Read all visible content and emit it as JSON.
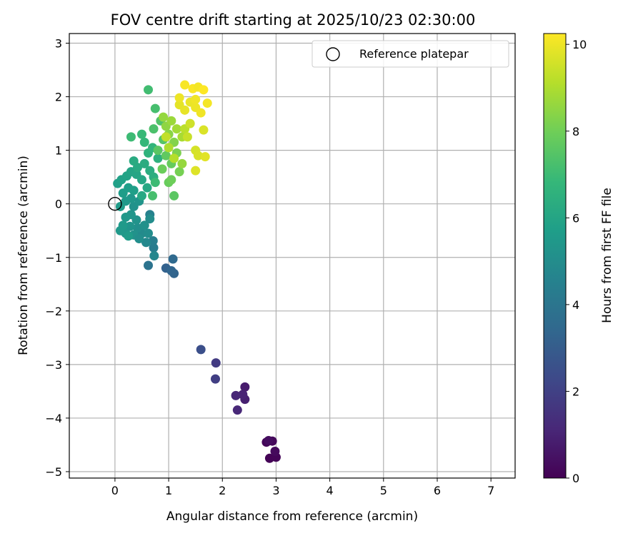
{
  "chart_data": {
    "type": "scatter",
    "title": "FOV centre drift starting at 2025/10/23 02:30:00",
    "xlabel": "Angular distance from reference (arcmin)",
    "ylabel": "Rotation from reference (arcmin)",
    "xlim": [
      -0.85,
      7.45
    ],
    "ylim": [
      -5.12,
      3.18
    ],
    "x_ticks": [
      0,
      1,
      2,
      3,
      4,
      5,
      6,
      7
    ],
    "y_ticks": [
      -5,
      -4,
      -3,
      -2,
      -1,
      0,
      1,
      2,
      3
    ],
    "x_tick_labels": [
      "0",
      "1",
      "2",
      "3",
      "4",
      "5",
      "6",
      "7"
    ],
    "y_tick_labels": [
      "−5",
      "−4",
      "−3",
      "−2",
      "−1",
      "0",
      "1",
      "2",
      "3"
    ],
    "grid": true,
    "legend": {
      "placement": "top-right",
      "entries": [
        "Reference platepar"
      ]
    },
    "reference_point": {
      "x": 0.0,
      "y": 0.0
    },
    "colorbar": {
      "label": "Hours from first FF file",
      "range": [
        0,
        10.25
      ],
      "ticks": [
        0,
        2,
        4,
        6,
        8,
        10
      ],
      "tick_labels": [
        "0",
        "2",
        "4",
        "6",
        "8",
        "10"
      ],
      "colormap": "viridis",
      "color_stops": [
        "#440154",
        "#482878",
        "#3e4989",
        "#31688e",
        "#26828e",
        "#1f9e89",
        "#35b779",
        "#6ece58",
        "#b5de2b",
        "#fde725"
      ]
    },
    "points": [
      {
        "x": 2.88,
        "y": -4.75,
        "t": 0.05
      },
      {
        "x": 3.0,
        "y": -4.73,
        "t": 0.1
      },
      {
        "x": 2.82,
        "y": -4.45,
        "t": 0.15
      },
      {
        "x": 2.93,
        "y": -4.43,
        "t": 0.2
      },
      {
        "x": 2.98,
        "y": -4.62,
        "t": 0.25
      },
      {
        "x": 2.86,
        "y": -4.42,
        "t": 0.35
      },
      {
        "x": 2.42,
        "y": -3.42,
        "t": 0.8
      },
      {
        "x": 2.42,
        "y": -3.65,
        "t": 0.9
      },
      {
        "x": 2.38,
        "y": -3.56,
        "t": 1.0
      },
      {
        "x": 2.25,
        "y": -3.58,
        "t": 1.1
      },
      {
        "x": 2.28,
        "y": -3.85,
        "t": 1.15
      },
      {
        "x": 1.88,
        "y": -2.97,
        "t": 1.8
      },
      {
        "x": 1.87,
        "y": -3.27,
        "t": 1.9
      },
      {
        "x": 1.6,
        "y": -2.72,
        "t": 2.5
      },
      {
        "x": 0.95,
        "y": -1.2,
        "t": 3.2
      },
      {
        "x": 1.1,
        "y": -1.3,
        "t": 3.3
      },
      {
        "x": 1.05,
        "y": -1.25,
        "t": 3.35
      },
      {
        "x": 1.08,
        "y": -1.03,
        "t": 3.5
      },
      {
        "x": 0.62,
        "y": -1.15,
        "t": 3.9
      },
      {
        "x": 0.72,
        "y": -0.82,
        "t": 4.3
      },
      {
        "x": 0.71,
        "y": -0.69,
        "t": 4.4
      },
      {
        "x": 0.73,
        "y": -0.97,
        "t": 4.7
      },
      {
        "x": 0.65,
        "y": -0.2,
        "t": 4.5
      },
      {
        "x": 0.58,
        "y": -0.72,
        "t": 4.8
      },
      {
        "x": 0.5,
        "y": -0.55,
        "t": 4.9
      },
      {
        "x": 0.62,
        "y": -0.55,
        "t": 5.0
      },
      {
        "x": 0.42,
        "y": -0.45,
        "t": 5.1
      },
      {
        "x": 0.35,
        "y": -0.58,
        "t": 5.2
      },
      {
        "x": 0.28,
        "y": -0.42,
        "t": 5.3
      },
      {
        "x": 0.2,
        "y": -0.55,
        "t": 5.4
      },
      {
        "x": 0.1,
        "y": -0.5,
        "t": 5.5
      },
      {
        "x": 0.25,
        "y": -0.6,
        "t": 5.6
      },
      {
        "x": 0.45,
        "y": -0.65,
        "t": 5.05
      },
      {
        "x": 0.55,
        "y": -0.4,
        "t": 5.15
      },
      {
        "x": 0.4,
        "y": -0.3,
        "t": 5.25
      },
      {
        "x": 0.3,
        "y": -0.2,
        "t": 5.35
      },
      {
        "x": 0.2,
        "y": -0.25,
        "t": 5.45
      },
      {
        "x": 0.15,
        "y": -0.4,
        "t": 5.55
      },
      {
        "x": 0.35,
        "y": -0.05,
        "t": 5.2
      },
      {
        "x": 0.45,
        "y": 0.05,
        "t": 5.3
      },
      {
        "x": 0.3,
        "y": 0.1,
        "t": 5.4
      },
      {
        "x": 0.2,
        "y": 0.05,
        "t": 5.5
      },
      {
        "x": 0.1,
        "y": -0.05,
        "t": 5.6
      },
      {
        "x": 0.15,
        "y": 0.2,
        "t": 5.65
      },
      {
        "x": 0.25,
        "y": 0.3,
        "t": 5.7
      },
      {
        "x": 0.35,
        "y": 0.25,
        "t": 5.75
      },
      {
        "x": 0.05,
        "y": 0.38,
        "t": 5.8
      },
      {
        "x": 0.12,
        "y": 0.45,
        "t": 5.85
      },
      {
        "x": 0.22,
        "y": 0.52,
        "t": 5.9
      },
      {
        "x": 0.3,
        "y": 0.6,
        "t": 5.95
      },
      {
        "x": 0.4,
        "y": 0.55,
        "t": 6.0
      },
      {
        "x": 0.5,
        "y": 0.45,
        "t": 6.05
      },
      {
        "x": 0.6,
        "y": 0.3,
        "t": 6.1
      },
      {
        "x": 0.5,
        "y": 0.15,
        "t": 6.15
      },
      {
        "x": 0.42,
        "y": 0.68,
        "t": 6.2
      },
      {
        "x": 0.35,
        "y": 0.8,
        "t": 6.25
      },
      {
        "x": 0.55,
        "y": 0.75,
        "t": 6.3
      },
      {
        "x": 0.65,
        "y": 0.62,
        "t": 6.35
      },
      {
        "x": 0.72,
        "y": 0.5,
        "t": 6.4
      },
      {
        "x": 0.8,
        "y": 0.85,
        "t": 6.5
      },
      {
        "x": 0.62,
        "y": 0.95,
        "t": 6.6
      },
      {
        "x": 0.7,
        "y": 1.05,
        "t": 6.7
      },
      {
        "x": 0.55,
        "y": 1.15,
        "t": 6.8
      },
      {
        "x": 0.5,
        "y": 1.3,
        "t": 6.9
      },
      {
        "x": 0.3,
        "y": 1.25,
        "t": 7.0
      },
      {
        "x": 0.65,
        "y": -0.28,
        "t": 5.0
      },
      {
        "x": 0.62,
        "y": 2.13,
        "t": 7.1
      },
      {
        "x": 0.75,
        "y": 1.78,
        "t": 7.2
      },
      {
        "x": 0.72,
        "y": 1.4,
        "t": 7.3
      },
      {
        "x": 0.85,
        "y": 1.55,
        "t": 7.4
      },
      {
        "x": 0.9,
        "y": 1.2,
        "t": 7.5
      },
      {
        "x": 0.8,
        "y": 1.0,
        "t": 7.6
      },
      {
        "x": 0.95,
        "y": 0.9,
        "t": 7.7
      },
      {
        "x": 1.05,
        "y": 0.75,
        "t": 7.8
      },
      {
        "x": 0.88,
        "y": 0.65,
        "t": 7.9
      },
      {
        "x": 0.75,
        "y": 0.4,
        "t": 7.0
      },
      {
        "x": 1.0,
        "y": 0.4,
        "t": 7.85
      },
      {
        "x": 1.05,
        "y": 0.45,
        "t": 7.95
      },
      {
        "x": 0.7,
        "y": 0.15,
        "t": 7.2
      },
      {
        "x": 1.1,
        "y": 0.15,
        "t": 7.6
      },
      {
        "x": 1.2,
        "y": 0.6,
        "t": 8.1
      },
      {
        "x": 1.15,
        "y": 0.95,
        "t": 8.2
      },
      {
        "x": 1.1,
        "y": 1.15,
        "t": 8.3
      },
      {
        "x": 1.0,
        "y": 1.3,
        "t": 8.4
      },
      {
        "x": 0.95,
        "y": 1.45,
        "t": 8.5
      },
      {
        "x": 0.9,
        "y": 1.62,
        "t": 8.6
      },
      {
        "x": 1.05,
        "y": 1.55,
        "t": 8.7
      },
      {
        "x": 1.15,
        "y": 1.4,
        "t": 8.8
      },
      {
        "x": 1.25,
        "y": 1.25,
        "t": 8.9
      },
      {
        "x": 1.0,
        "y": 1.05,
        "t": 9.0
      },
      {
        "x": 1.1,
        "y": 0.85,
        "t": 9.1
      },
      {
        "x": 1.25,
        "y": 0.75,
        "t": 8.6
      },
      {
        "x": 1.3,
        "y": 1.4,
        "t": 9.2
      },
      {
        "x": 0.95,
        "y": 1.25,
        "t": 9.3
      },
      {
        "x": 1.35,
        "y": 1.25,
        "t": 9.4
      },
      {
        "x": 1.4,
        "y": 1.5,
        "t": 9.5
      },
      {
        "x": 1.5,
        "y": 1.0,
        "t": 9.6
      },
      {
        "x": 1.55,
        "y": 0.9,
        "t": 9.65
      },
      {
        "x": 1.65,
        "y": 1.38,
        "t": 9.7
      },
      {
        "x": 1.5,
        "y": 0.62,
        "t": 9.75
      },
      {
        "x": 1.68,
        "y": 0.88,
        "t": 9.8
      },
      {
        "x": 1.2,
        "y": 1.85,
        "t": 9.85
      },
      {
        "x": 1.3,
        "y": 1.75,
        "t": 9.9
      },
      {
        "x": 1.4,
        "y": 1.9,
        "t": 9.95
      },
      {
        "x": 1.5,
        "y": 1.8,
        "t": 10.0
      },
      {
        "x": 1.6,
        "y": 1.7,
        "t": 10.05
      },
      {
        "x": 1.72,
        "y": 1.88,
        "t": 10.1
      },
      {
        "x": 1.2,
        "y": 1.98,
        "t": 10.0
      },
      {
        "x": 1.3,
        "y": 2.22,
        "t": 10.15
      },
      {
        "x": 1.45,
        "y": 2.15,
        "t": 10.2
      },
      {
        "x": 1.55,
        "y": 2.18,
        "t": 10.1
      },
      {
        "x": 1.65,
        "y": 2.13,
        "t": 10.25
      },
      {
        "x": 1.5,
        "y": 1.95,
        "t": 10.05
      }
    ]
  }
}
